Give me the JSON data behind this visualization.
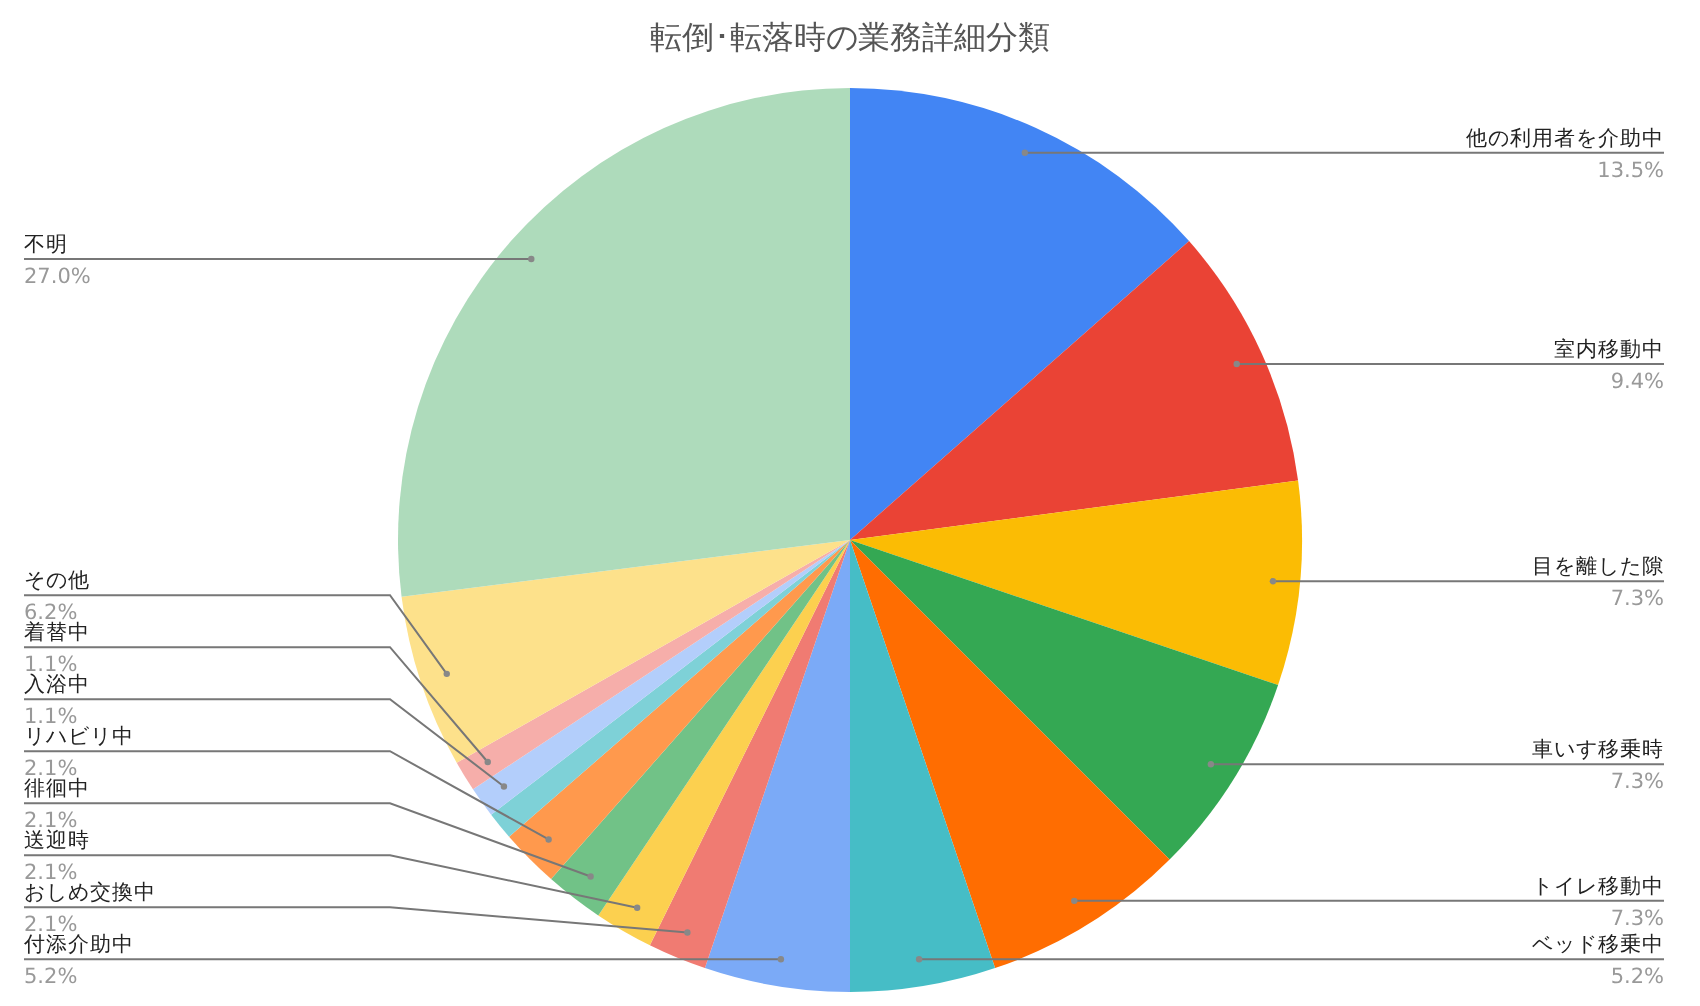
{
  "chart_data": {
    "type": "pie",
    "title": "転倒･転落時の業務詳細分類",
    "categories": [
      "他の利用者を介助中",
      "室内移動中",
      "目を離した隙",
      "車いす移乗時",
      "トイレ移動中",
      "ベッド移乗中",
      "付添介助中",
      "おしめ交換中",
      "送迎時",
      "徘徊中",
      "リハビリ中",
      null,
      "入浴中",
      "着替中",
      "その他",
      "不明"
    ],
    "values": [
      13.5,
      9.4,
      7.3,
      7.3,
      7.3,
      5.2,
      5.2,
      2.1,
      2.1,
      2.1,
      2.1,
      1.0,
      1.1,
      1.1,
      6.2,
      27.0
    ],
    "value_labels": [
      "13.5%",
      "9.4%",
      "7.3%",
      "7.3%",
      "7.3%",
      "5.2%",
      "5.2%",
      "2.1%",
      "2.1%",
      "2.1%",
      "2.1%",
      null,
      "1.1%",
      "1.1%",
      "6.2%",
      "27.0%"
    ],
    "colors": [
      "#4285f4",
      "#ea4335",
      "#fbbc04",
      "#34a853",
      "#ff6d01",
      "#46bdc6",
      "#7baaf7",
      "#f07b72",
      "#fcd04f",
      "#71c287",
      "#ff994d",
      "#7ed1d7",
      "#b3cefb",
      "#f6aeaa",
      "#fde18b",
      "#aedbbb"
    ]
  }
}
